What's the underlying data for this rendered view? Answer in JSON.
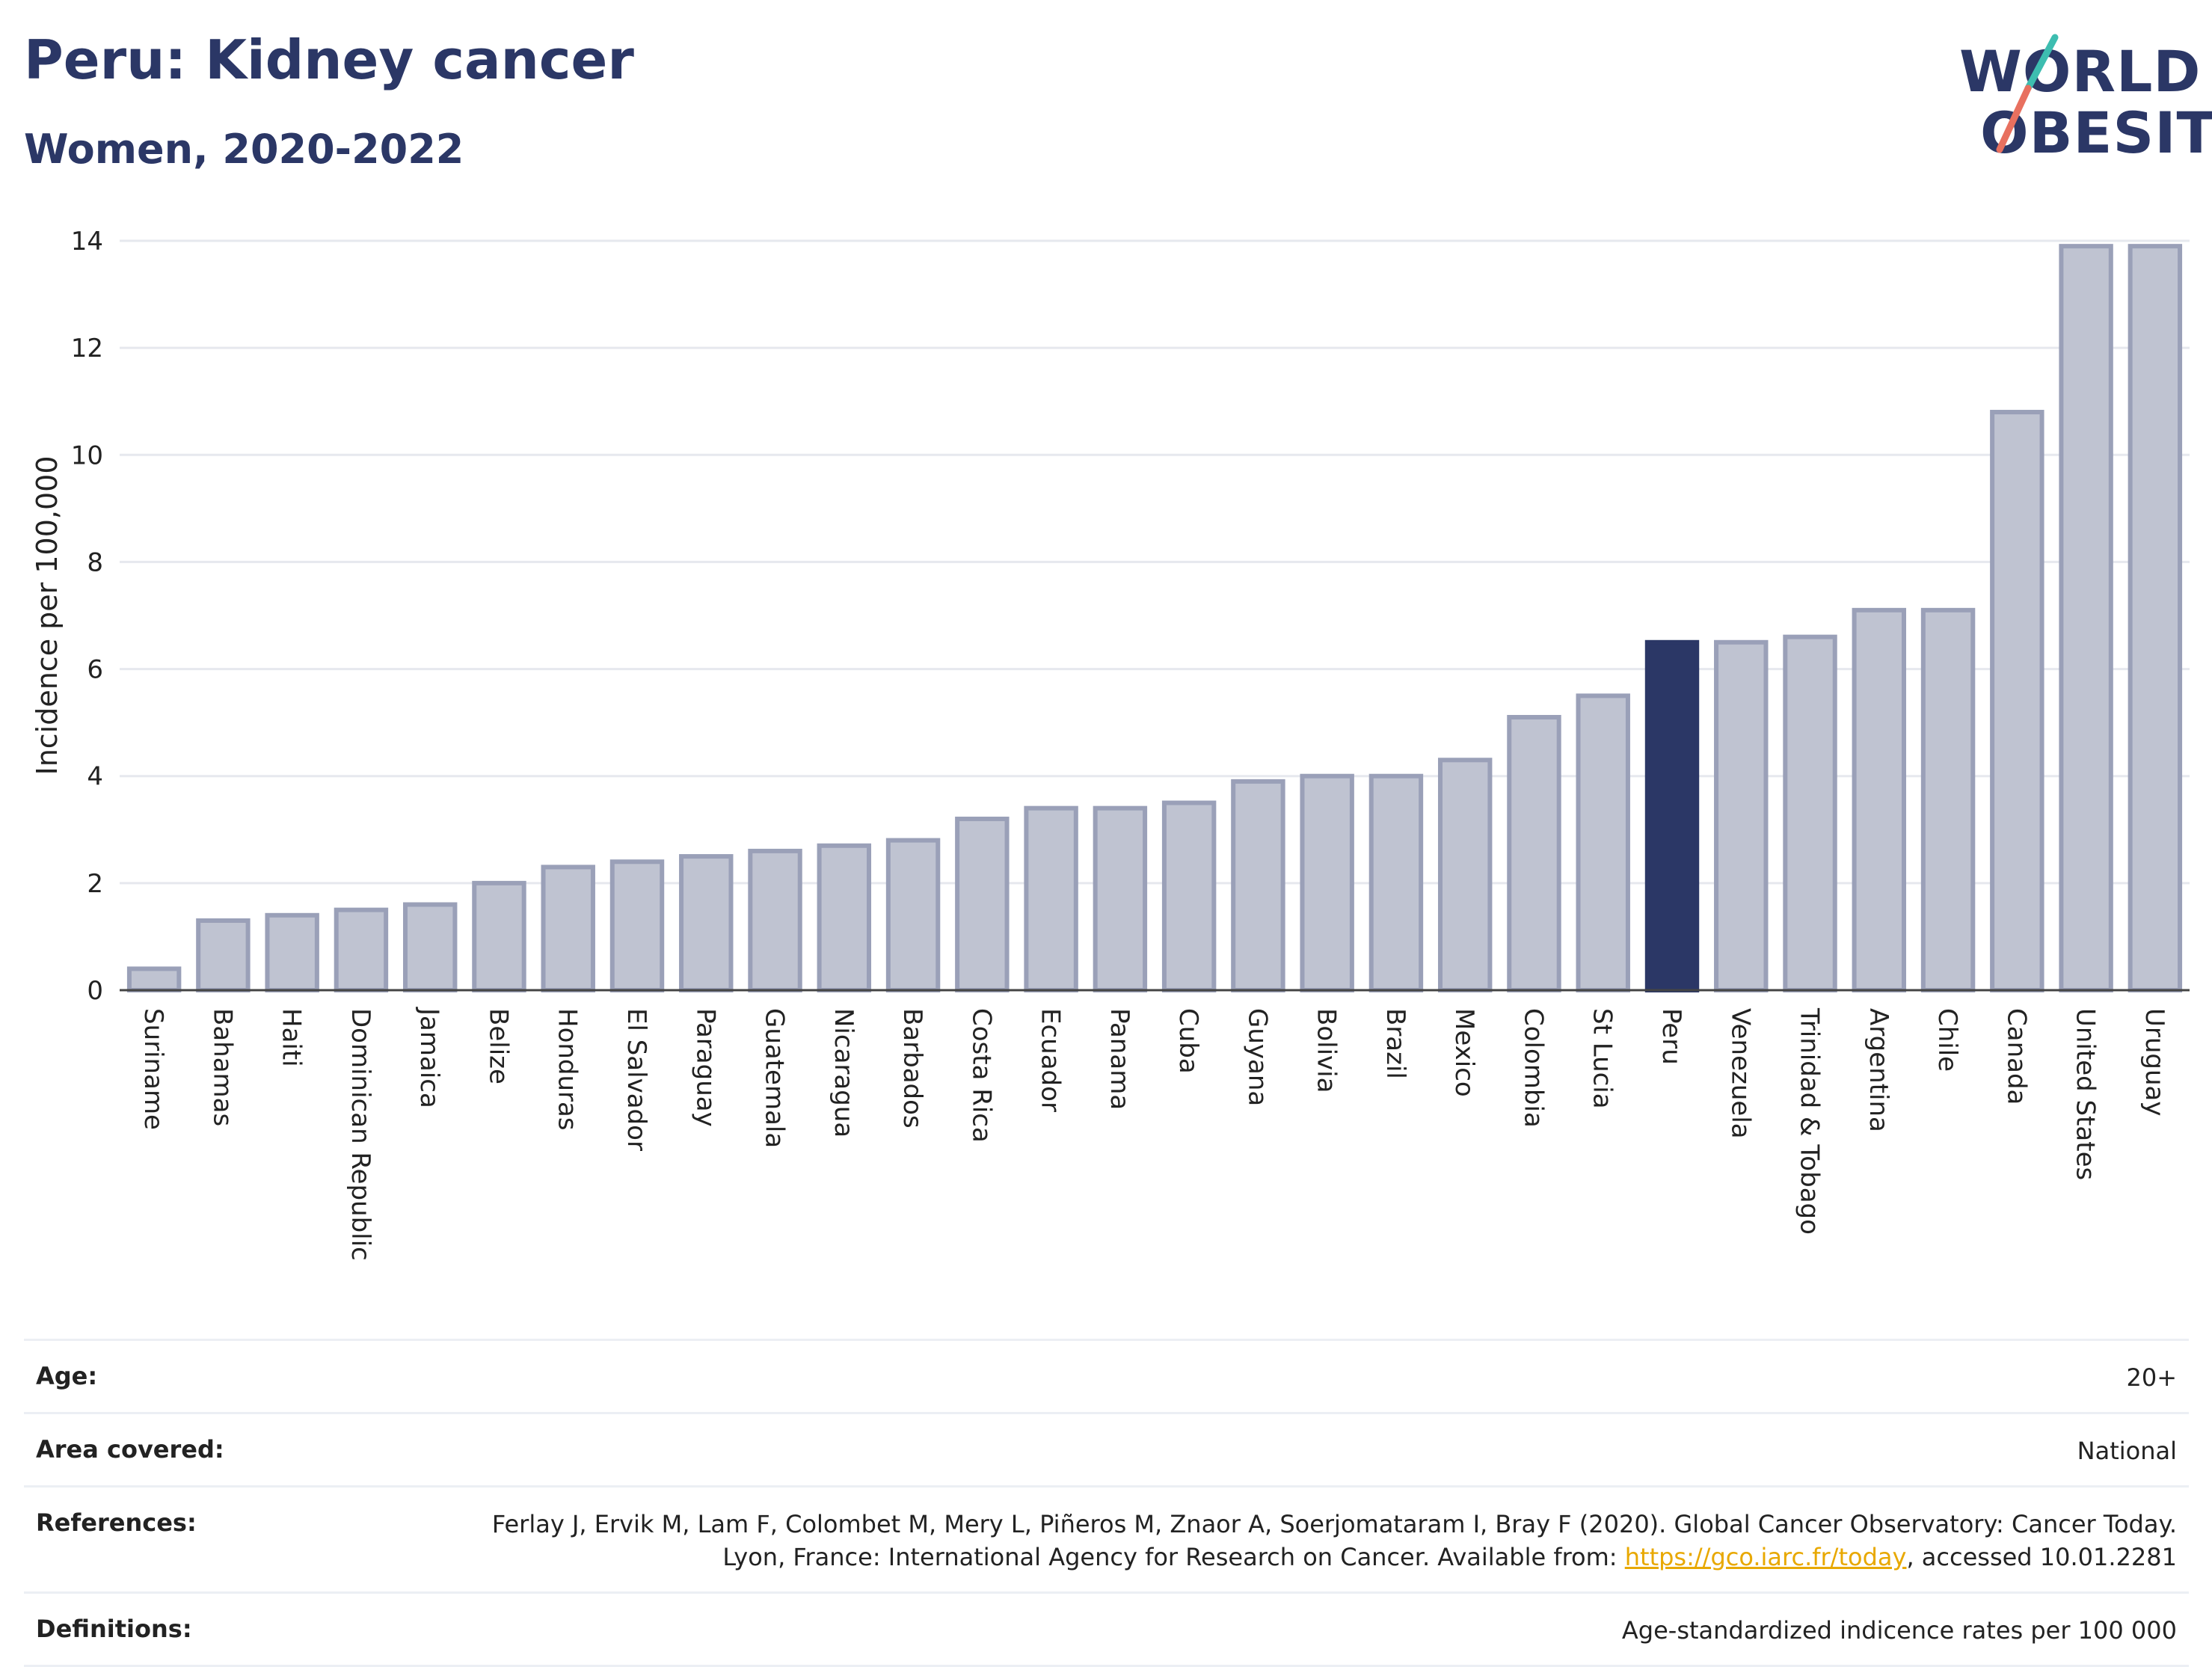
{
  "header": {
    "title": "Peru: Kidney cancer",
    "subtitle": "Women, 2020-2022",
    "logo_line1": "WORLD",
    "logo_line2": "OBESITY"
  },
  "colors": {
    "highlight": "#2b3766",
    "bar_fill": "#bfc3d1",
    "bar_stroke": "#9aa0b8",
    "accent_teal": "#3dbdb0",
    "accent_coral": "#e8705f"
  },
  "chart_data": {
    "type": "bar",
    "ylabel": "Incidence per 100,000",
    "ylim": [
      0,
      14
    ],
    "yticks": [
      0,
      2,
      4,
      6,
      8,
      10,
      12,
      14
    ],
    "grid": true,
    "highlight_category": "Peru",
    "categories": [
      "Suriname",
      "Bahamas",
      "Haiti",
      "Dominican Republic",
      "Jamaica",
      "Belize",
      "Honduras",
      "El Salvador",
      "Paraguay",
      "Guatemala",
      "Nicaragua",
      "Barbados",
      "Costa Rica",
      "Ecuador",
      "Panama",
      "Cuba",
      "Guyana",
      "Bolivia",
      "Brazil",
      "Mexico",
      "Colombia",
      "St Lucia",
      "Peru",
      "Venezuela",
      "Trinidad & Tobago",
      "Argentina",
      "Chile",
      "Canada",
      "United States",
      "Uruguay"
    ],
    "values": [
      0.4,
      1.3,
      1.4,
      1.5,
      1.6,
      2.0,
      2.3,
      2.4,
      2.5,
      2.6,
      2.7,
      2.8,
      3.2,
      3.4,
      3.4,
      3.5,
      3.9,
      4.0,
      4.0,
      4.3,
      5.1,
      5.5,
      6.5,
      6.5,
      6.6,
      7.1,
      7.1,
      10.8,
      13.9,
      13.9
    ]
  },
  "meta": {
    "age_label": "Age:",
    "age_value": "20+",
    "area_label": "Area covered:",
    "area_value": "National",
    "references_label": "References:",
    "references_text": "Ferlay J, Ervik M, Lam F, Colombet M, Mery L, Piñeros M, Znaor A, Soerjomataram I, Bray F (2020). Global Cancer Observatory: Cancer Today. Lyon, France: International Agency for Research on Cancer. Available from: ",
    "references_link": "https://gco.iarc.fr/today",
    "references_tail": ", accessed 10.01.2281",
    "definitions_label": "Definitions:",
    "definitions_value": "Age-standardized indicence rates per 100 000"
  }
}
